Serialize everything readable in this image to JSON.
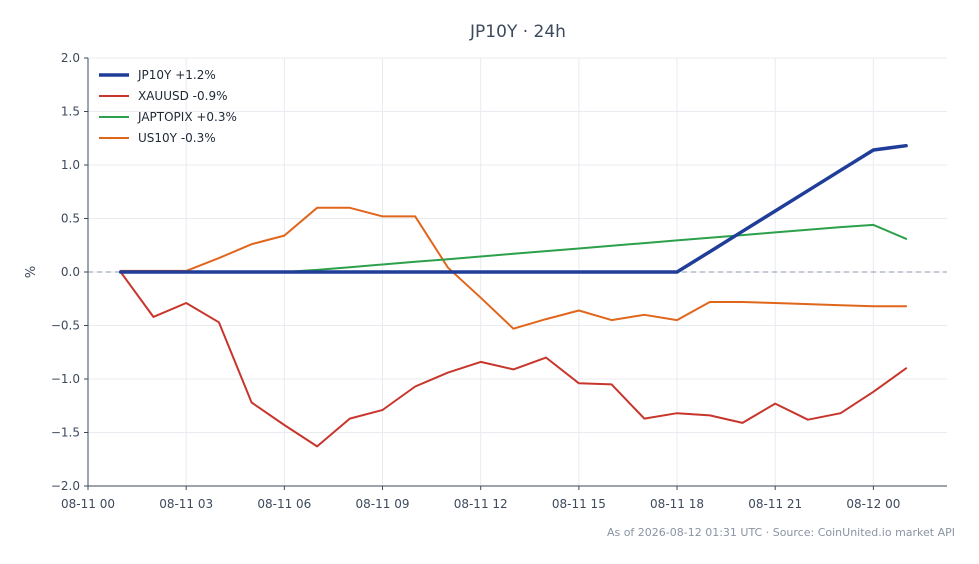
{
  "footer": "As of 2026-08-12 01:31 UTC · Source: CoinUnited.io market API",
  "chart_data": {
    "type": "line",
    "title": "JP10Y · 24h",
    "xlabel": "",
    "ylabel": "%",
    "ylim": [
      -2.0,
      2.0
    ],
    "yticks": [
      -2.0,
      -1.5,
      -1.0,
      -0.5,
      0.0,
      0.5,
      1.0,
      1.5,
      2.0
    ],
    "ytick_labels": [
      "−2.0",
      "−1.5",
      "−1.0",
      "−0.5",
      "0.0",
      "0.5",
      "1.0",
      "1.5",
      "2.0"
    ],
    "xlim": [
      "2026-08-11 00:00",
      "2026-08-12 02:15"
    ],
    "xticks": [
      "2026-08-11 00:00",
      "2026-08-11 03:00",
      "2026-08-11 06:00",
      "2026-08-11 09:00",
      "2026-08-11 12:00",
      "2026-08-11 15:00",
      "2026-08-11 18:00",
      "2026-08-11 21:00",
      "2026-08-12 00:00"
    ],
    "xtick_labels": [
      "08-11 00",
      "08-11 03",
      "08-11 06",
      "08-11 09",
      "08-11 12",
      "08-11 15",
      "08-11 18",
      "08-11 21",
      "08-12 00"
    ],
    "x": [
      "2026-08-11 01:00",
      "2026-08-11 02:00",
      "2026-08-11 03:00",
      "2026-08-11 04:00",
      "2026-08-11 05:00",
      "2026-08-11 06:00",
      "2026-08-11 07:00",
      "2026-08-11 08:00",
      "2026-08-11 09:00",
      "2026-08-11 10:00",
      "2026-08-11 11:00",
      "2026-08-11 12:00",
      "2026-08-11 13:00",
      "2026-08-11 14:00",
      "2026-08-11 15:00",
      "2026-08-11 16:00",
      "2026-08-11 17:00",
      "2026-08-11 18:00",
      "2026-08-11 19:00",
      "2026-08-11 20:00",
      "2026-08-11 21:00",
      "2026-08-11 22:00",
      "2026-08-11 23:00",
      "2026-08-12 00:00",
      "2026-08-12 01:00"
    ],
    "baseline": 0,
    "grid": true,
    "legend_position": "top-left",
    "series": [
      {
        "name": "JP10Y +1.2%",
        "color": "#1f3d99",
        "width": 3.5,
        "values": [
          0.0,
          0.0,
          0.0,
          0.0,
          0.0,
          0.0,
          0.0,
          0.0,
          0.0,
          0.0,
          0.0,
          0.0,
          0.0,
          0.0,
          0.0,
          0.0,
          0.0,
          0.0,
          0.19,
          0.38,
          0.57,
          0.76,
          0.95,
          1.14,
          1.18
        ]
      },
      {
        "name": "XAUUSD -0.9%",
        "color": "#c8352c",
        "width": 2,
        "values": [
          0.0,
          -0.42,
          -0.29,
          -0.47,
          -1.22,
          -1.43,
          -1.63,
          -1.37,
          -1.29,
          -1.07,
          -0.94,
          -0.84,
          -0.91,
          -0.8,
          -1.04,
          -1.05,
          -1.37,
          -1.32,
          -1.34,
          -1.41,
          -1.23,
          -1.38,
          -1.32,
          -1.12,
          -0.9
        ]
      },
      {
        "name": "JAPTOPIX +0.3%",
        "color": "#2ca04a",
        "width": 2,
        "values": [
          0.0,
          0.0,
          0.0,
          0.0,
          0.0,
          0.0,
          0.02,
          0.045,
          0.07,
          0.095,
          0.12,
          0.145,
          0.17,
          0.195,
          0.22,
          0.245,
          0.27,
          0.295,
          0.32,
          0.345,
          0.37,
          0.395,
          0.42,
          0.44,
          0.31
        ]
      },
      {
        "name": "US10Y -0.3%",
        "color": "#e0661c",
        "width": 2,
        "values": [
          0.01,
          0.01,
          0.01,
          0.13,
          0.26,
          0.34,
          0.6,
          0.6,
          0.52,
          0.52,
          0.04,
          -0.24,
          -0.53,
          -0.44,
          -0.36,
          -0.45,
          -0.4,
          -0.45,
          -0.28,
          -0.28,
          -0.29,
          -0.3,
          -0.31,
          -0.32,
          -0.32
        ]
      }
    ]
  }
}
